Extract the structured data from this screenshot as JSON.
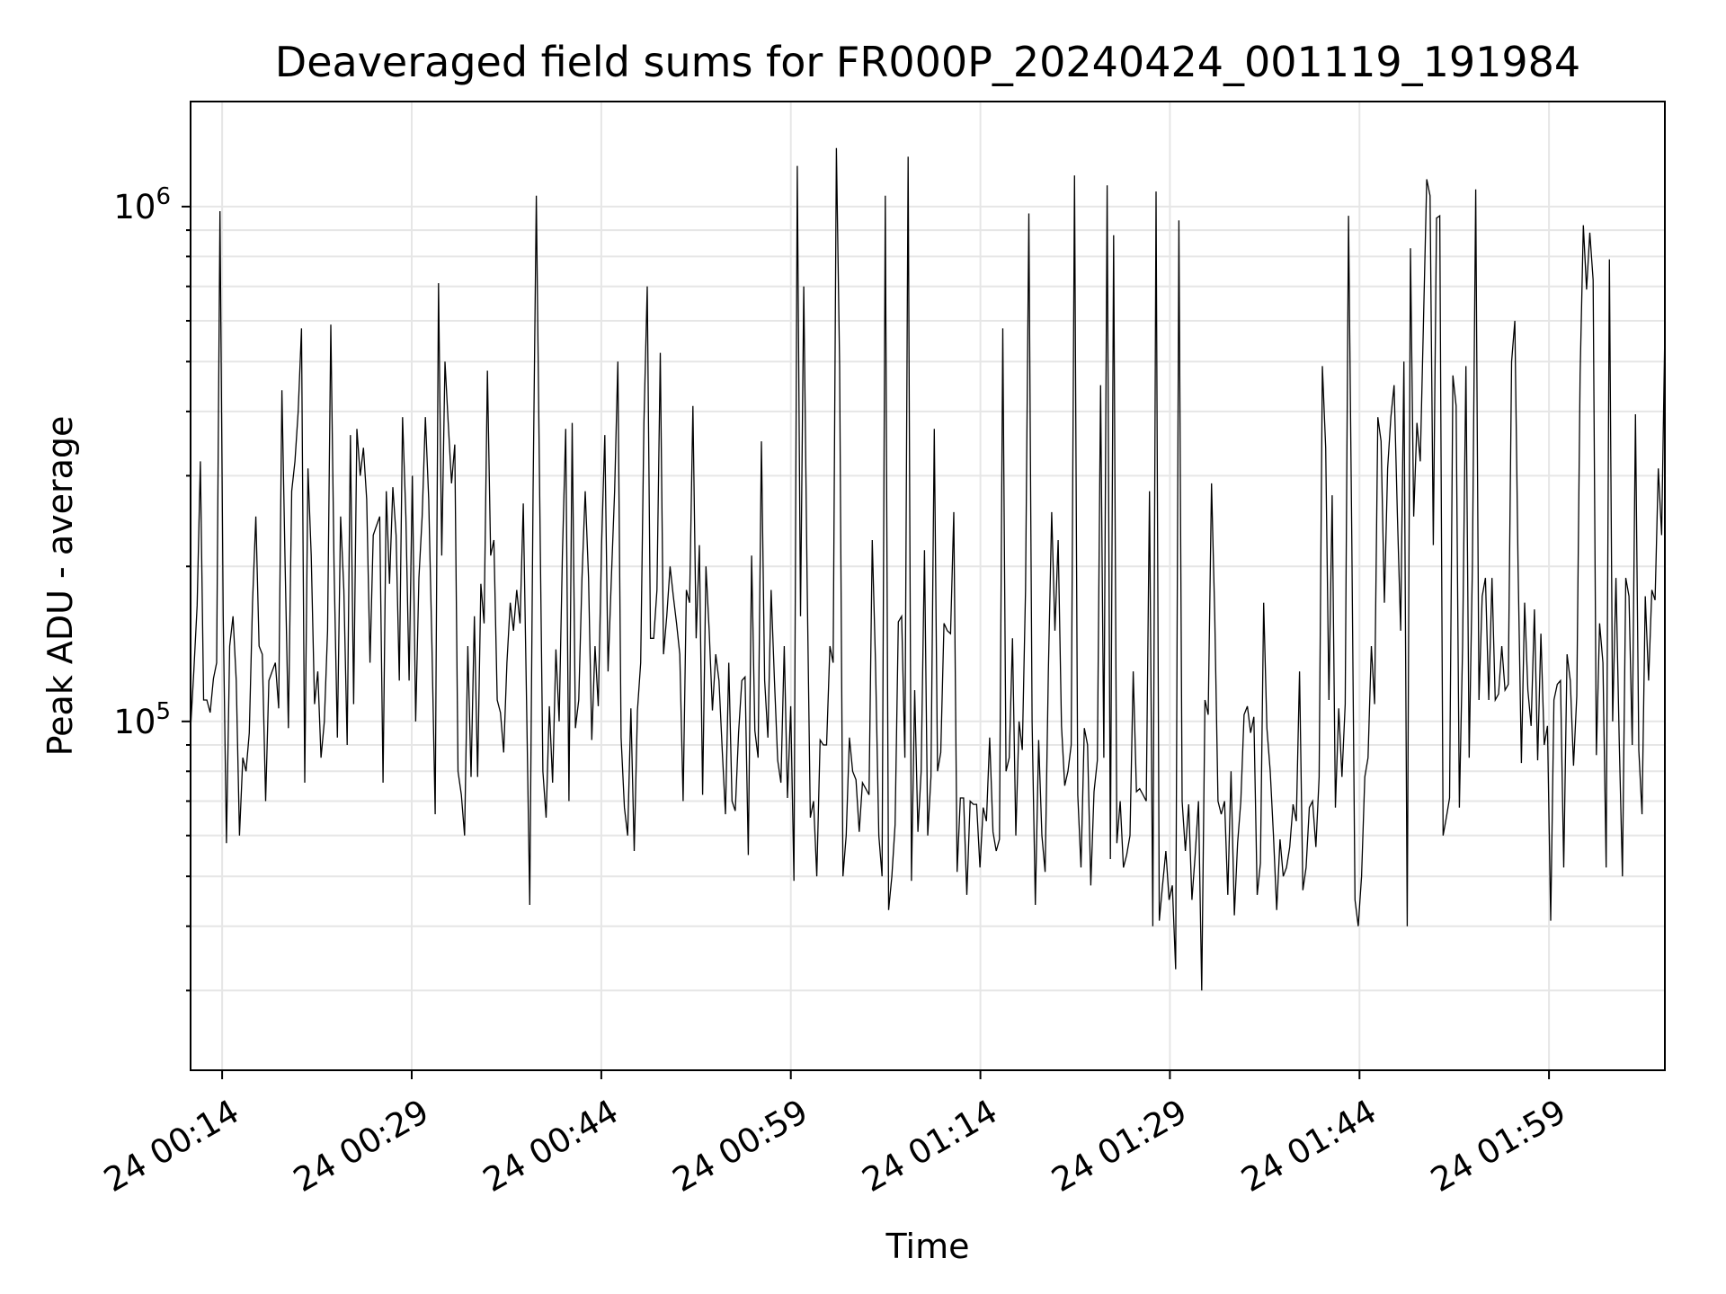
{
  "chart_data": {
    "type": "line",
    "title": "Deaveraged field sums for FR000P_20240424_001119_191984",
    "xlabel": "Time",
    "ylabel": "Peak ADU - average",
    "yscale": "log",
    "grid": true,
    "legend": "none",
    "line_color": "#000000",
    "grid_color": "#e6e6e6",
    "ylim": [
      21000,
      1600000
    ],
    "xlim": [
      "2024-04-24 00:11:30",
      "2024-04-24 02:08:10"
    ],
    "x_ticks": [
      {
        "time": "2024-04-24 00:14:00",
        "label": "24 00:14"
      },
      {
        "time": "2024-04-24 00:29:00",
        "label": "24 00:29"
      },
      {
        "time": "2024-04-24 00:44:00",
        "label": "24 00:44"
      },
      {
        "time": "2024-04-24 00:59:00",
        "label": "24 00:59"
      },
      {
        "time": "2024-04-24 01:14:00",
        "label": "24 01:14"
      },
      {
        "time": "2024-04-24 01:29:00",
        "label": "24 01:29"
      },
      {
        "time": "2024-04-24 01:44:00",
        "label": "24 01:44"
      },
      {
        "time": "2024-04-24 01:59:00",
        "label": "24 01:59"
      }
    ],
    "y_ticks": [
      {
        "value": 100000,
        "base": "10",
        "exp": "5"
      },
      {
        "value": 1000000,
        "base": "10",
        "exp": "6"
      }
    ],
    "series": [
      {
        "x_start": "2024-04-24 00:11:30",
        "x_end": "2024-04-24 02:08:10",
        "values": [
          97000,
          125000,
          168000,
          320000,
          110000,
          110000,
          104000,
          121000,
          130000,
          980000,
          160000,
          58000,
          140000,
          160000,
          120000,
          60000,
          85000,
          80000,
          95000,
          170000,
          250000,
          140000,
          135000,
          70000,
          120000,
          125000,
          130000,
          106000,
          440000,
          200000,
          97000,
          280000,
          320000,
          400000,
          580000,
          76000,
          310000,
          210000,
          108000,
          125000,
          85000,
          100000,
          150000,
          590000,
          200000,
          93000,
          250000,
          180000,
          90000,
          360000,
          108000,
          370000,
          300000,
          340000,
          270000,
          130000,
          230000,
          240000,
          250000,
          76000,
          280000,
          185000,
          285000,
          230000,
          120000,
          390000,
          250000,
          120000,
          300000,
          100000,
          190000,
          250000,
          390000,
          270000,
          140000,
          66000,
          710000,
          210000,
          500000,
          380000,
          290000,
          345000,
          80000,
          72000,
          60000,
          140000,
          78000,
          160000,
          78000,
          185000,
          155000,
          480000,
          210000,
          225000,
          110000,
          104000,
          87000,
          130000,
          170000,
          150000,
          180000,
          155000,
          265000,
          110000,
          44000,
          280000,
          1050000,
          290000,
          80000,
          65000,
          107000,
          76000,
          138000,
          100000,
          210000,
          370000,
          70000,
          380000,
          97000,
          110000,
          190000,
          280000,
          190000,
          92000,
          140000,
          107000,
          220000,
          360000,
          125000,
          190000,
          280000,
          500000,
          93000,
          68000,
          60000,
          106000,
          56000,
          105000,
          130000,
          380000,
          700000,
          145000,
          145000,
          180000,
          520000,
          135000,
          160000,
          200000,
          175000,
          155000,
          135000,
          70000,
          180000,
          170000,
          410000,
          145000,
          220000,
          72000,
          200000,
          150000,
          105000,
          135000,
          120000,
          88000,
          66000,
          130000,
          70000,
          67000,
          95000,
          120000,
          122000,
          55000,
          210000,
          96000,
          85000,
          350000,
          120000,
          93000,
          180000,
          120000,
          84000,
          76000,
          140000,
          71000,
          107000,
          49000,
          1200000,
          160000,
          700000,
          190000,
          65000,
          70000,
          50000,
          92000,
          90000,
          90000,
          140000,
          130000,
          1300000,
          490000,
          50000,
          60000,
          93000,
          80000,
          77000,
          61000,
          76000,
          74000,
          72000,
          225000,
          130000,
          60000,
          50000,
          1050000,
          43000,
          50000,
          63000,
          156000,
          160000,
          85000,
          1250000,
          49000,
          115000,
          61000,
          80000,
          215000,
          60000,
          78000,
          370000,
          80000,
          87000,
          155000,
          150000,
          148000,
          255000,
          51000,
          71000,
          71000,
          46000,
          70000,
          69000,
          69000,
          52000,
          68000,
          64000,
          93000,
          61000,
          56000,
          59000,
          580000,
          80000,
          85000,
          145000,
          60000,
          100000,
          88000,
          180000,
          970000,
          100000,
          44000,
          92000,
          60000,
          51000,
          125000,
          255000,
          150000,
          225000,
          98000,
          75000,
          80000,
          90000,
          1150000,
          72000,
          52000,
          97000,
          90000,
          48000,
          73000,
          84000,
          450000,
          85000,
          1100000,
          54000,
          880000,
          58000,
          70000,
          52000,
          55000,
          60000,
          125000,
          73000,
          74000,
          72000,
          70000,
          280000,
          40000,
          1070000,
          41000,
          48000,
          56000,
          45000,
          48000,
          33000,
          940000,
          70000,
          56000,
          69000,
          45000,
          55000,
          70000,
          30000,
          110000,
          103000,
          290000,
          160000,
          70000,
          66000,
          70000,
          46000,
          80000,
          42000,
          58000,
          70000,
          103000,
          107000,
          95000,
          102000,
          46000,
          53000,
          170000,
          97000,
          80000,
          60000,
          43000,
          59000,
          50000,
          52000,
          57000,
          69000,
          64000,
          125000,
          47000,
          52000,
          68000,
          70000,
          57000,
          78000,
          490000,
          340000,
          110000,
          275000,
          68000,
          106000,
          78000,
          108000,
          960000,
          230000,
          45000,
          40000,
          50000,
          78000,
          85000,
          140000,
          108000,
          390000,
          350000,
          170000,
          310000,
          390000,
          450000,
          250000,
          150000,
          500000,
          40000,
          830000,
          250000,
          380000,
          320000,
          600000,
          1130000,
          1050000,
          220000,
          950000,
          960000,
          60000,
          65000,
          71000,
          470000,
          410000,
          68000,
          140000,
          490000,
          85000,
          200000,
          1080000,
          110000,
          175000,
          190000,
          110000,
          190000,
          110000,
          113000,
          140000,
          115000,
          118000,
          500000,
          600000,
          200000,
          83000,
          170000,
          115000,
          98000,
          165000,
          84000,
          148000,
          90000,
          98000,
          41000,
          110000,
          118000,
          120000,
          52000,
          135000,
          120000,
          82000,
          112000,
          470000,
          920000,
          690000,
          890000,
          720000,
          86000,
          155000,
          130000,
          52000,
          790000,
          100000,
          190000,
          92000,
          50000,
          190000,
          175000,
          90000,
          395000,
          88000,
          66000,
          175000,
          120000,
          180000,
          172000,
          310000,
          230000,
          580000
        ]
      }
    ]
  }
}
